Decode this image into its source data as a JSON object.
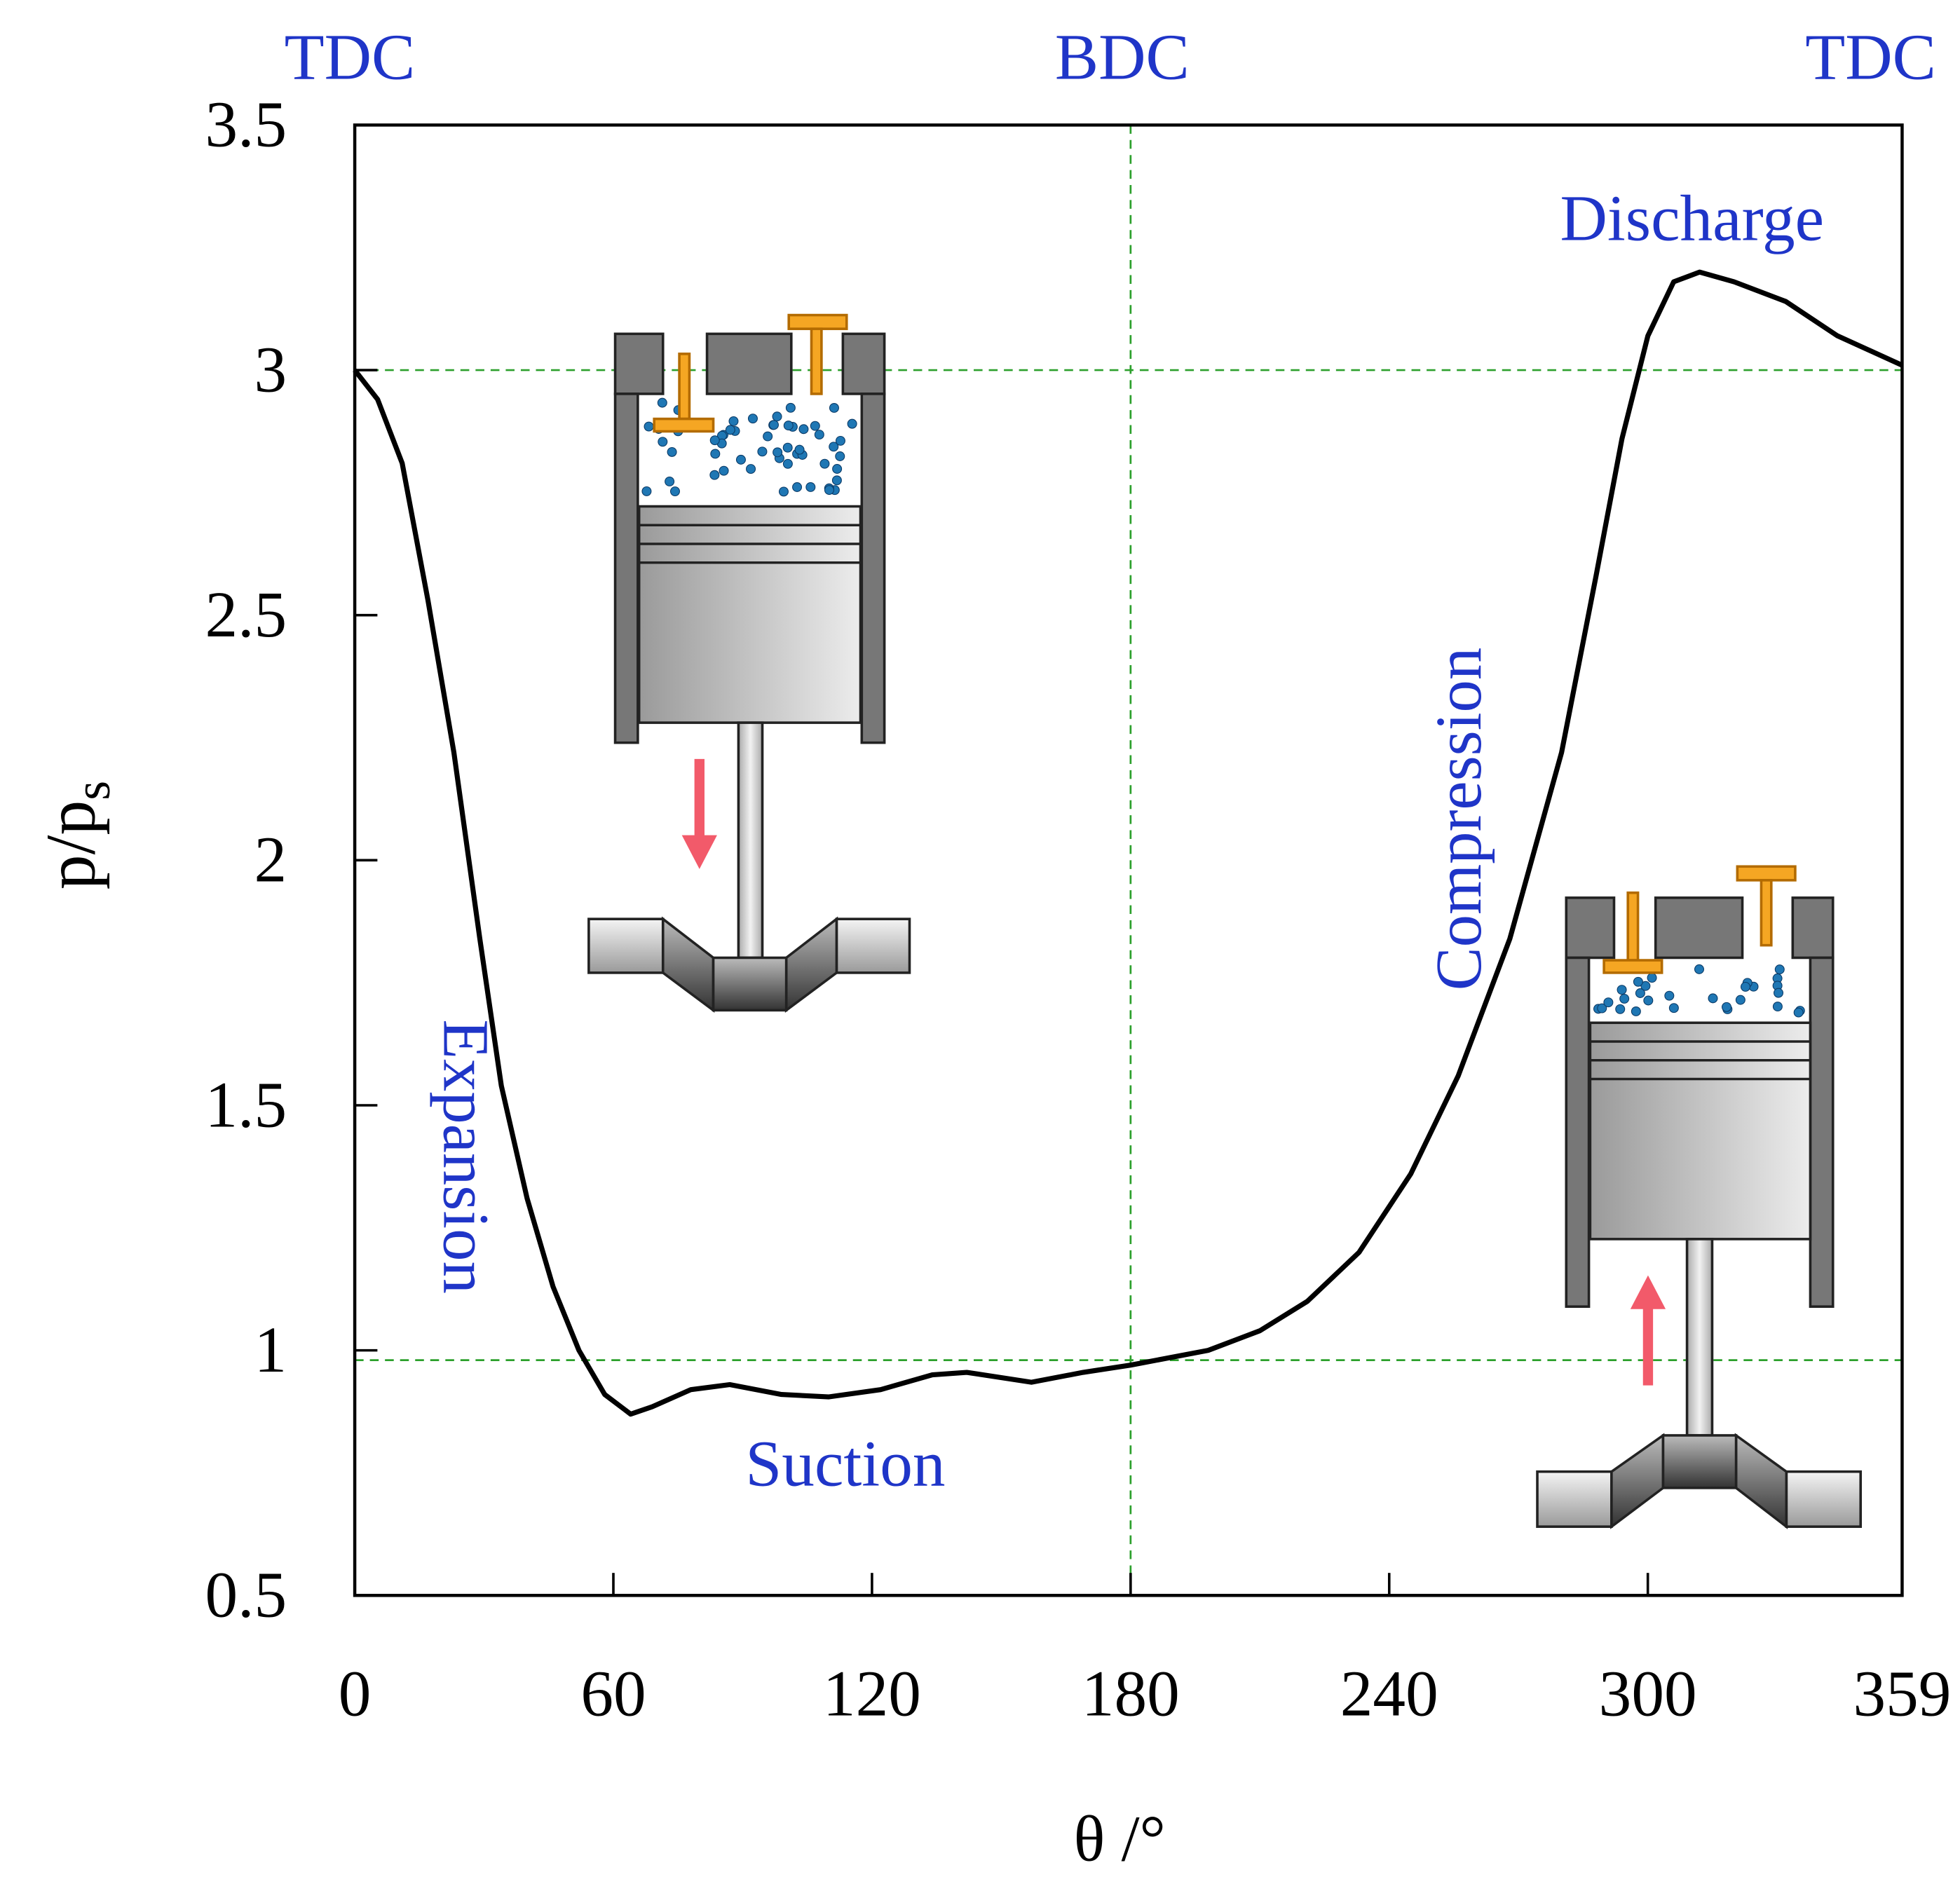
{
  "chart_data": {
    "type": "line",
    "xlabel": "θ /°",
    "ylabel": "p/p",
    "ylabel_subscript": "s",
    "x": [
      0,
      5.3,
      11,
      17,
      23,
      29,
      34,
      40,
      46,
      52,
      58,
      64,
      69,
      78,
      87,
      99,
      110,
      122,
      134,
      142,
      157,
      169,
      180,
      198,
      210,
      221,
      233,
      245,
      256,
      268,
      280,
      288,
      294,
      300,
      306,
      312,
      320,
      332,
      344,
      359
    ],
    "values": [
      3.0,
      2.94,
      2.81,
      2.53,
      2.22,
      1.84,
      1.54,
      1.31,
      1.13,
      1.0,
      0.91,
      0.87,
      0.885,
      0.92,
      0.93,
      0.91,
      0.905,
      0.92,
      0.95,
      0.955,
      0.935,
      0.955,
      0.97,
      1.0,
      1.04,
      1.1,
      1.2,
      1.36,
      1.56,
      1.84,
      2.22,
      2.58,
      2.86,
      3.07,
      3.18,
      3.2,
      3.18,
      3.14,
      3.07,
      3.01
    ],
    "color": "#000000",
    "xlim": [
      0,
      359
    ],
    "xticks": [
      0,
      60,
      120,
      180,
      240,
      300,
      359
    ],
    "ylim": [
      0.5,
      3.5
    ],
    "yticks": [
      0.5,
      1,
      1.5,
      2,
      2.5,
      3,
      3.5
    ],
    "reference_lines": {
      "x": [
        180
      ],
      "y": [
        3,
        0.98
      ],
      "color": "#2ca02c"
    },
    "annotations": [
      "TDC",
      "BDC",
      "TDC",
      "Discharge",
      "Compression",
      "Expansion",
      "Suction"
    ]
  }
}
